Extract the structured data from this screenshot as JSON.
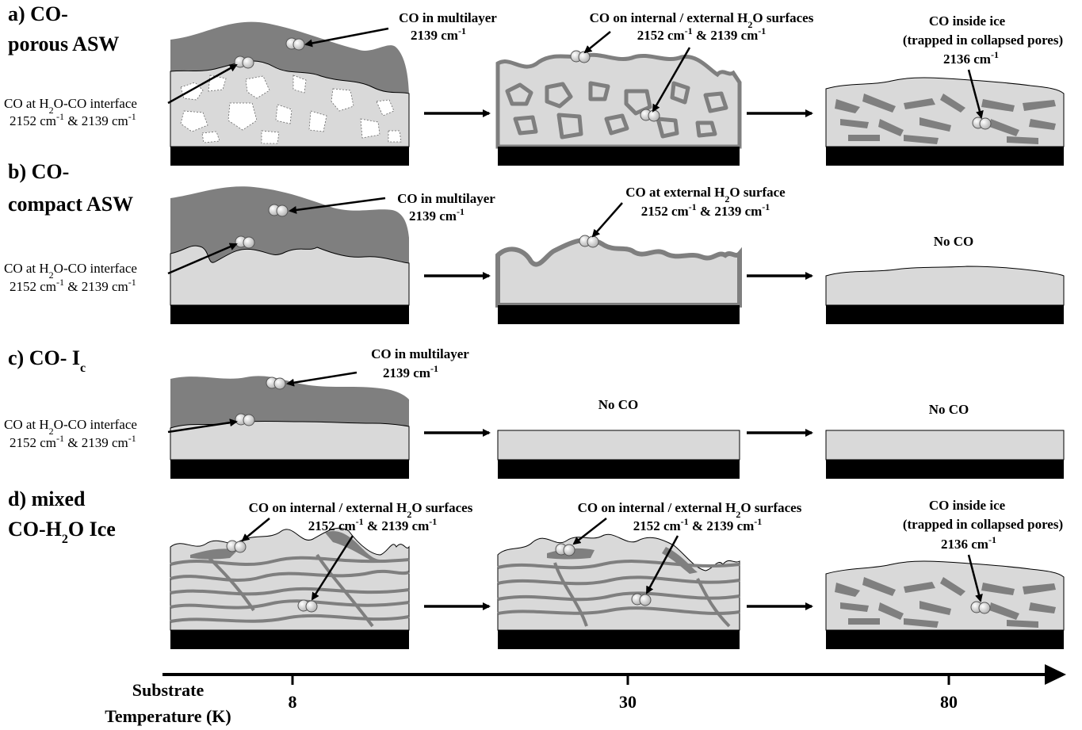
{
  "rows": {
    "a": {
      "label_line1": "a) CO-",
      "label_line2": "porous ASW",
      "interface_line1": "CO at H",
      "interface_sub": "2",
      "interface_line1b": "O-CO interface",
      "interface_line2a": "2152 cm",
      "interface_sup": "-1",
      "interface_line2b": " & 2139 cm",
      "interface_sup2": "-1",
      "multilayer_line1": "CO in multilayer",
      "multilayer_line2": "2139 cm",
      "multilayer_sup": "-1",
      "mid_line1a": "CO on internal / external H",
      "mid_sub": "2",
      "mid_line1b": "O surfaces",
      "mid_line2a": "2152 cm",
      "mid_sup": "-1",
      "mid_line2b": " & 2139 cm",
      "mid_sup2": "-1",
      "right_line1": "CO inside ice",
      "right_line2": "(trapped in collapsed pores)",
      "right_line3": "2136 cm",
      "right_sup": "-1"
    },
    "b": {
      "label_line1": "b) CO-",
      "label_line2": "compact ASW",
      "interface_line1": "CO at H",
      "interface_sub": "2",
      "interface_line1b": "O-CO interface",
      "interface_line2a": "2152 cm",
      "interface_sup": "-1",
      "interface_line2b": " & 2139 cm",
      "interface_sup2": "-1",
      "multilayer_line1": "CO in multilayer",
      "multilayer_line2": "2139 cm",
      "multilayer_sup": "-1",
      "mid_line1a": "CO at external H",
      "mid_sub": "2",
      "mid_line1b": "O surface",
      "mid_line2a": "2152 cm",
      "mid_sup": "-1",
      "mid_line2b": " & 2139 cm",
      "mid_sup2": "-1",
      "right_text": "No CO"
    },
    "c": {
      "label_main": "c) CO- I",
      "label_sub": "c",
      "interface_line1": "CO at H",
      "interface_sub": "2",
      "interface_line1b": "O-CO interface",
      "interface_line2a": "2152 cm",
      "interface_sup": "-1",
      "interface_line2b": " & 2139 cm",
      "interface_sup2": "-1",
      "multilayer_line1": "CO in multilayer",
      "multilayer_line2": "2139 cm",
      "multilayer_sup": "-1",
      "mid_text": "No CO",
      "right_text": "No CO"
    },
    "d": {
      "label_line1": "d) mixed",
      "label_line2a": "CO-H",
      "label_sub": "2",
      "label_line2b": "O Ice",
      "left_line1a": "CO on internal / external H",
      "left_sub": "2",
      "left_line1b": "O surfaces",
      "left_line2a": "2152 cm",
      "left_sup": "-1",
      "left_line2b": " & 2139 cm",
      "left_sup2": "-1",
      "mid_line1a": "CO on internal / external H",
      "mid_sub": "2",
      "mid_line1b": "O surfaces",
      "mid_line2a": "2152 cm",
      "mid_sup": "-1",
      "mid_line2b": " & 2139 cm",
      "mid_sup2": "-1",
      "right_line1": "CO inside ice",
      "right_line2": "(trapped in collapsed pores)",
      "right_line3": "2136 cm",
      "right_sup": "-1"
    }
  },
  "axis": {
    "title_line1": "Substrate",
    "title_line2": "Temperature (K)",
    "ticks": [
      "8",
      "30",
      "80"
    ]
  },
  "colors": {
    "co_layer": "#7f7f7f",
    "ice": "#d9d9d9",
    "substrate": "#000000",
    "pore": "#ffffff"
  }
}
